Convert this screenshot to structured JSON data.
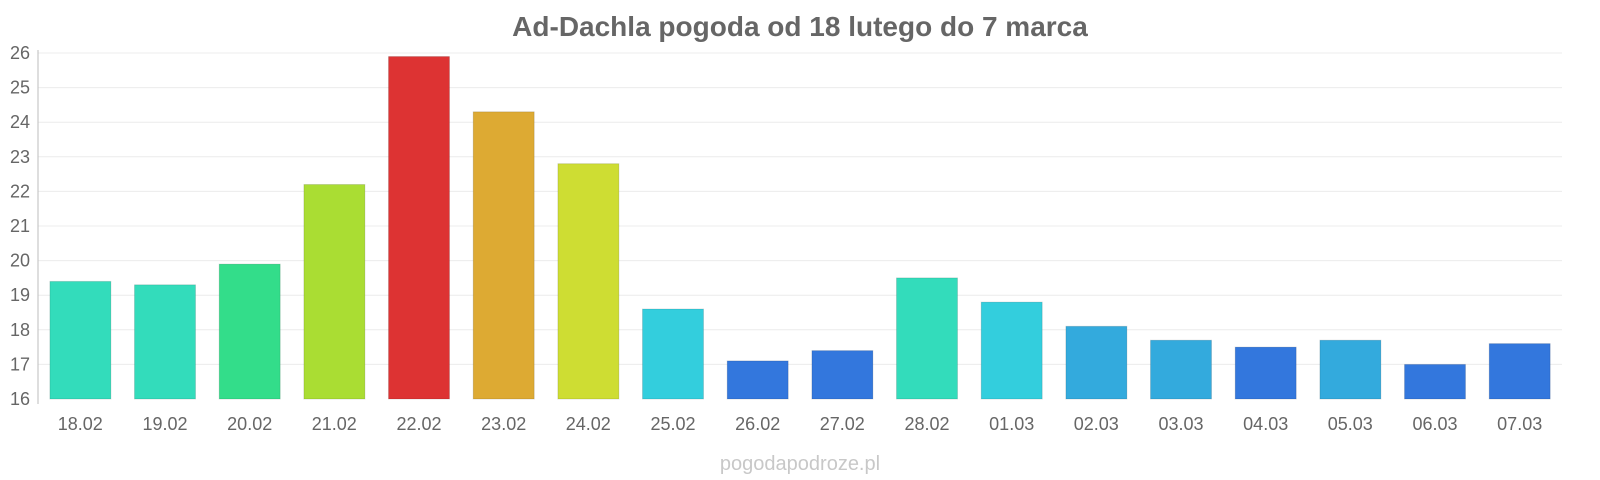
{
  "chart_data": {
    "type": "bar",
    "title": "Ad-Dachla pogoda od 18 lutego do 7 marca",
    "xlabel": "",
    "ylabel": "",
    "ylim": [
      16,
      26
    ],
    "yticks": [
      "16",
      "17",
      "18",
      "19",
      "20",
      "21",
      "22",
      "23",
      "24",
      "25",
      "26"
    ],
    "grid": true,
    "categories": [
      "18.02",
      "19.02",
      "20.02",
      "21.02",
      "22.02",
      "23.02",
      "24.02",
      "25.02",
      "26.02",
      "27.02",
      "28.02",
      "01.03",
      "02.03",
      "03.03",
      "04.03",
      "05.03",
      "06.03",
      "07.03"
    ],
    "values": [
      19.4,
      19.3,
      19.9,
      22.2,
      25.9,
      24.3,
      22.8,
      18.6,
      17.1,
      17.4,
      19.5,
      18.8,
      18.1,
      17.7,
      17.5,
      17.7,
      17.0,
      17.6
    ],
    "colors": [
      "#33dcbb",
      "#33dcbb",
      "#33dd8a",
      "#aadd33",
      "#dd3333",
      "#ddaa33",
      "#cedd33",
      "#33cedd",
      "#3377dd",
      "#3377dd",
      "#33dcbb",
      "#33cedd",
      "#33aadd",
      "#33aadd",
      "#3377dd",
      "#33aadd",
      "#3377dd",
      "#3377dd"
    ]
  },
  "footer": {
    "credit": "pogodapodroze.pl"
  }
}
